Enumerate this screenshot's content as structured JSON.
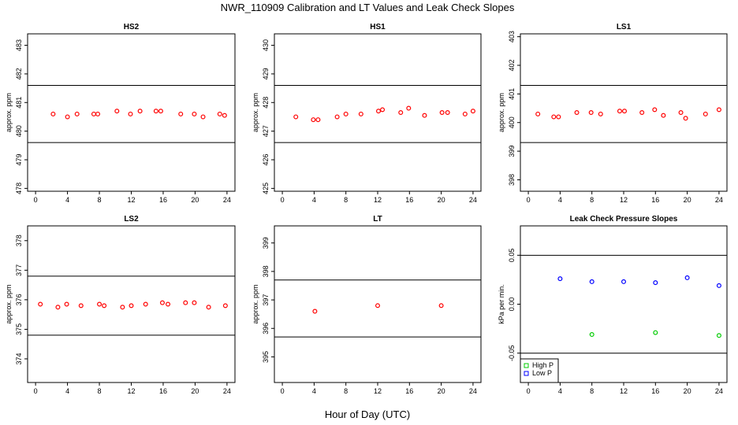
{
  "title": "NWR_110909  Calibration and LT Values and Leak Check Slopes",
  "x_axis_label": "Hour of Day (UTC)",
  "chart_data": [
    {
      "type": "scatter",
      "title": "HS2",
      "ylabel": "approx. ppm",
      "xlim": [
        -1,
        25
      ],
      "ylim": [
        477.9,
        483.4
      ],
      "x_ticks": [
        0,
        4,
        8,
        12,
        16,
        20,
        24
      ],
      "y_ticks": [
        478,
        479,
        480,
        481,
        482,
        483
      ],
      "ref_lines": [
        481.6,
        479.6
      ],
      "point_color": "#ff0000",
      "series": [
        {
          "x": [
            2.2,
            4.0,
            5.2,
            7.3,
            7.8,
            10.2,
            11.9,
            13.1,
            15.1,
            15.7,
            18.2,
            19.9,
            21.0,
            23.1,
            23.7
          ],
          "y": [
            480.6,
            480.5,
            480.6,
            480.6,
            480.6,
            480.7,
            480.6,
            480.7,
            480.7,
            480.7,
            480.6,
            480.6,
            480.5,
            480.6,
            480.55
          ]
        }
      ]
    },
    {
      "type": "scatter",
      "title": "HS1",
      "ylabel": "approx. ppm",
      "xlim": [
        -1,
        25
      ],
      "ylim": [
        424.9,
        430.4
      ],
      "x_ticks": [
        0,
        4,
        8,
        12,
        16,
        20,
        24
      ],
      "y_ticks": [
        425,
        426,
        427,
        428,
        429,
        430
      ],
      "ref_lines": [
        428.6,
        426.6
      ],
      "point_color": "#ff0000",
      "series": [
        {
          "x": [
            1.7,
            3.9,
            4.5,
            6.9,
            8.0,
            9.9,
            12.1,
            12.6,
            14.9,
            15.9,
            17.9,
            20.1,
            20.8,
            23.0,
            24.0
          ],
          "y": [
            427.5,
            427.4,
            427.4,
            427.5,
            427.6,
            427.6,
            427.7,
            427.75,
            427.65,
            427.8,
            427.55,
            427.65,
            427.65,
            427.6,
            427.7
          ]
        }
      ]
    },
    {
      "type": "scatter",
      "title": "LS1",
      "ylabel": "approx. ppm",
      "xlim": [
        -1,
        25
      ],
      "ylim": [
        397.6,
        403.1
      ],
      "x_ticks": [
        0,
        4,
        8,
        12,
        16,
        20,
        24
      ],
      "y_ticks": [
        398,
        399,
        400,
        401,
        402,
        403
      ],
      "ref_lines": [
        401.3,
        399.3
      ],
      "point_color": "#ff0000",
      "series": [
        {
          "x": [
            1.2,
            3.2,
            3.8,
            6.1,
            7.9,
            9.1,
            11.5,
            12.1,
            14.3,
            15.9,
            17.0,
            19.2,
            19.8,
            22.3,
            24.0
          ],
          "y": [
            400.3,
            400.2,
            400.2,
            400.35,
            400.35,
            400.3,
            400.4,
            400.4,
            400.35,
            400.45,
            400.25,
            400.35,
            400.15,
            400.3,
            400.45
          ]
        }
      ]
    },
    {
      "type": "scatter",
      "title": "LS2",
      "ylabel": "approx. ppm",
      "xlim": [
        -1,
        25
      ],
      "ylim": [
        373.2,
        378.5
      ],
      "x_ticks": [
        0,
        4,
        8,
        12,
        16,
        20,
        24
      ],
      "y_ticks": [
        374,
        375,
        376,
        377,
        378
      ],
      "ref_lines": [
        376.8,
        374.8
      ],
      "point_color": "#ff0000",
      "series": [
        {
          "x": [
            0.6,
            2.8,
            3.9,
            5.7,
            8.0,
            8.6,
            10.9,
            12.0,
            13.8,
            15.9,
            16.6,
            18.8,
            19.9,
            21.7,
            23.8
          ],
          "y": [
            375.85,
            375.75,
            375.85,
            375.8,
            375.85,
            375.8,
            375.75,
            375.8,
            375.85,
            375.9,
            375.85,
            375.9,
            375.9,
            375.75,
            375.8
          ]
        }
      ]
    },
    {
      "type": "scatter",
      "title": "LT",
      "ylabel": "approx. ppm",
      "xlim": [
        -1,
        25
      ],
      "ylim": [
        394.1,
        399.6
      ],
      "x_ticks": [
        0,
        4,
        8,
        12,
        16,
        20,
        24
      ],
      "y_ticks": [
        395,
        396,
        397,
        398,
        399
      ],
      "ref_lines": [
        397.7,
        395.7
      ],
      "point_color": "#ff0000",
      "series": [
        {
          "x": [
            4.1,
            12.0,
            20.0
          ],
          "y": [
            396.6,
            396.8,
            396.8
          ]
        }
      ]
    },
    {
      "type": "scatter",
      "title": "Leak Check Pressure Slopes",
      "ylabel": "kPa per min.",
      "xlim": [
        -1,
        25
      ],
      "ylim": [
        -0.08,
        0.08
      ],
      "x_ticks": [
        0,
        4,
        8,
        12,
        16,
        20,
        24
      ],
      "y_ticks": [
        -0.05,
        0.0,
        0.05
      ],
      "y_tick_labels": [
        "-0.05",
        "0.00",
        "0.05"
      ],
      "ref_lines": [
        0.05,
        -0.05
      ],
      "legend": {
        "position": "bottom-left",
        "entries": [
          "High P",
          "Low P"
        ]
      },
      "series": [
        {
          "name": "High P",
          "color": "#00cc00",
          "x": [
            8,
            16,
            24
          ],
          "y": [
            -0.031,
            -0.029,
            -0.032
          ]
        },
        {
          "name": "Low P",
          "color": "#0000ff",
          "x": [
            4,
            8,
            12,
            16,
            20,
            24
          ],
          "y": [
            0.026,
            0.023,
            0.023,
            0.022,
            0.027,
            0.019
          ]
        }
      ]
    }
  ]
}
